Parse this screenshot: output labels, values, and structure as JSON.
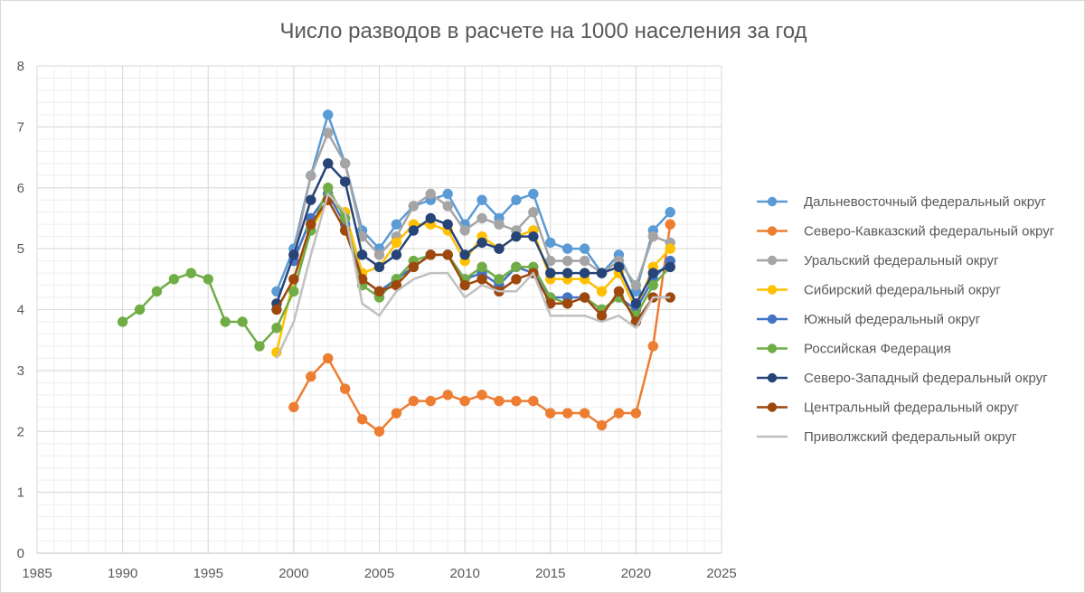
{
  "chart_data": {
    "type": "line",
    "title": "Число разводов в расчете на 1000 населения за год",
    "xlabel": "",
    "ylabel": "",
    "xlim": [
      1985,
      2025
    ],
    "ylim": [
      0,
      8
    ],
    "x_ticks": [
      1985,
      1990,
      1995,
      2000,
      2005,
      2010,
      2015,
      2020,
      2025
    ],
    "y_ticks": [
      0,
      1,
      2,
      3,
      4,
      5,
      6,
      7,
      8
    ],
    "grid": true,
    "legend_position": "right",
    "series": [
      {
        "name": "Дальневосточный федеральный округ",
        "color": "#5b9bd5",
        "markers": true,
        "x": [
          1999,
          2000,
          2001,
          2002,
          2003,
          2004,
          2005,
          2006,
          2007,
          2008,
          2009,
          2010,
          2011,
          2012,
          2013,
          2014,
          2015,
          2016,
          2017,
          2018,
          2019,
          2020,
          2021,
          2022
        ],
        "values": [
          4.3,
          5.0,
          6.2,
          7.2,
          6.4,
          5.3,
          5.0,
          5.4,
          5.7,
          5.8,
          5.9,
          5.4,
          5.8,
          5.5,
          5.8,
          5.9,
          5.1,
          5.0,
          5.0,
          4.6,
          4.9,
          4.3,
          5.3,
          5.6
        ]
      },
      {
        "name": "Северо-Кавказский федеральный округ",
        "color": "#ed7d31",
        "markers": true,
        "x": [
          2000,
          2001,
          2002,
          2003,
          2004,
          2005,
          2006,
          2007,
          2008,
          2009,
          2010,
          2011,
          2012,
          2013,
          2014,
          2015,
          2016,
          2017,
          2018,
          2019,
          2020,
          2021,
          2022
        ],
        "values": [
          2.4,
          2.9,
          3.2,
          2.7,
          2.2,
          2.0,
          2.3,
          2.5,
          2.5,
          2.6,
          2.5,
          2.6,
          2.5,
          2.5,
          2.5,
          2.3,
          2.3,
          2.3,
          2.1,
          2.3,
          2.3,
          3.4,
          5.4
        ]
      },
      {
        "name": "Уральский федеральный округ",
        "color": "#a5a5a5",
        "markers": true,
        "x": [
          2000,
          2001,
          2002,
          2003,
          2004,
          2005,
          2006,
          2007,
          2008,
          2009,
          2010,
          2011,
          2012,
          2013,
          2014,
          2015,
          2016,
          2017,
          2018,
          2019,
          2020,
          2021,
          2022
        ],
        "values": [
          4.9,
          6.2,
          6.9,
          6.4,
          5.2,
          4.9,
          5.2,
          5.7,
          5.9,
          5.7,
          5.3,
          5.5,
          5.4,
          5.3,
          5.6,
          4.8,
          4.8,
          4.8,
          4.6,
          4.8,
          4.4,
          5.2,
          5.1
        ]
      },
      {
        "name": "Сибирский федеральный округ",
        "color": "#ffc000",
        "markers": true,
        "x": [
          1999,
          2000,
          2001,
          2002,
          2003,
          2004,
          2005,
          2006,
          2007,
          2008,
          2009,
          2010,
          2011,
          2012,
          2013,
          2014,
          2015,
          2016,
          2017,
          2018,
          2019,
          2020,
          2021,
          2022
        ],
        "values": [
          3.3,
          4.5,
          5.3,
          5.8,
          5.6,
          4.6,
          4.7,
          5.1,
          5.4,
          5.4,
          5.3,
          4.8,
          5.2,
          5.0,
          5.2,
          5.3,
          4.5,
          4.5,
          4.5,
          4.3,
          4.6,
          4.0,
          4.7,
          5.0
        ]
      },
      {
        "name": "Южный федеральный округ",
        "color": "#4472c4",
        "markers": true,
        "x": [
          2000,
          2001,
          2002,
          2003,
          2004,
          2005,
          2006,
          2007,
          2008,
          2009,
          2010,
          2011,
          2012,
          2013,
          2014,
          2015,
          2016,
          2017,
          2018,
          2019,
          2020,
          2021,
          2022
        ],
        "values": [
          4.8,
          5.5,
          5.9,
          5.4,
          4.5,
          4.3,
          4.5,
          4.7,
          4.9,
          4.9,
          4.5,
          4.6,
          4.4,
          4.7,
          4.6,
          4.2,
          4.2,
          4.2,
          4.0,
          4.2,
          4.0,
          4.5,
          4.8
        ]
      },
      {
        "name": "Российская Федерация",
        "color": "#70ad47",
        "markers": true,
        "x": [
          1990,
          1991,
          1992,
          1993,
          1994,
          1995,
          1996,
          1997,
          1998,
          1999,
          2000,
          2001,
          2002,
          2003,
          2004,
          2005,
          2006,
          2007,
          2008,
          2009,
          2010,
          2011,
          2012,
          2013,
          2014,
          2015,
          2016,
          2017,
          2018,
          2019,
          2020,
          2021,
          2022
        ],
        "values": [
          3.8,
          4.0,
          4.3,
          4.5,
          4.6,
          4.5,
          3.8,
          3.8,
          3.4,
          3.7,
          4.3,
          5.3,
          6.0,
          5.5,
          4.4,
          4.2,
          4.5,
          4.8,
          4.9,
          4.9,
          4.5,
          4.7,
          4.5,
          4.7,
          4.7,
          4.2,
          4.1,
          4.2,
          4.0,
          4.2,
          3.9,
          4.4,
          4.7
        ]
      },
      {
        "name": "Северо-Западный федеральный округ",
        "color": "#264478",
        "markers": true,
        "x": [
          1999,
          2000,
          2001,
          2002,
          2003,
          2004,
          2005,
          2006,
          2007,
          2008,
          2009,
          2010,
          2011,
          2012,
          2013,
          2014,
          2015,
          2016,
          2017,
          2018,
          2019,
          2020,
          2021,
          2022
        ],
        "values": [
          4.1,
          4.9,
          5.8,
          6.4,
          6.1,
          4.9,
          4.7,
          4.9,
          5.3,
          5.5,
          5.4,
          4.9,
          5.1,
          5.0,
          5.2,
          5.2,
          4.6,
          4.6,
          4.6,
          4.6,
          4.7,
          4.1,
          4.6,
          4.7
        ]
      },
      {
        "name": "Центральный федеральный округ",
        "color": "#9e480e",
        "markers": true,
        "x": [
          1999,
          2000,
          2001,
          2002,
          2003,
          2004,
          2005,
          2006,
          2007,
          2008,
          2009,
          2010,
          2011,
          2012,
          2013,
          2014,
          2015,
          2016,
          2017,
          2018,
          2019,
          2020,
          2021,
          2022
        ],
        "values": [
          4.0,
          4.5,
          5.4,
          5.8,
          5.3,
          4.5,
          4.3,
          4.4,
          4.7,
          4.9,
          4.9,
          4.4,
          4.5,
          4.3,
          4.5,
          4.6,
          4.1,
          4.1,
          4.2,
          3.9,
          4.3,
          3.8,
          4.2,
          4.2
        ]
      },
      {
        "name": "Приволжский федеральный округ",
        "color": "#c0c0c0",
        "markers": false,
        "x": [
          1999,
          2000,
          2001,
          2002,
          2003,
          2004,
          2005,
          2006,
          2007,
          2008,
          2009,
          2010,
          2011,
          2012,
          2013,
          2014,
          2015,
          2016,
          2017,
          2018,
          2019,
          2020,
          2021,
          2022
        ],
        "values": [
          3.2,
          3.8,
          4.9,
          5.9,
          5.6,
          4.1,
          3.9,
          4.3,
          4.5,
          4.6,
          4.6,
          4.2,
          4.4,
          4.3,
          4.3,
          4.6,
          3.9,
          3.9,
          3.9,
          3.8,
          3.9,
          3.7,
          4.2,
          4.2
        ]
      }
    ]
  }
}
